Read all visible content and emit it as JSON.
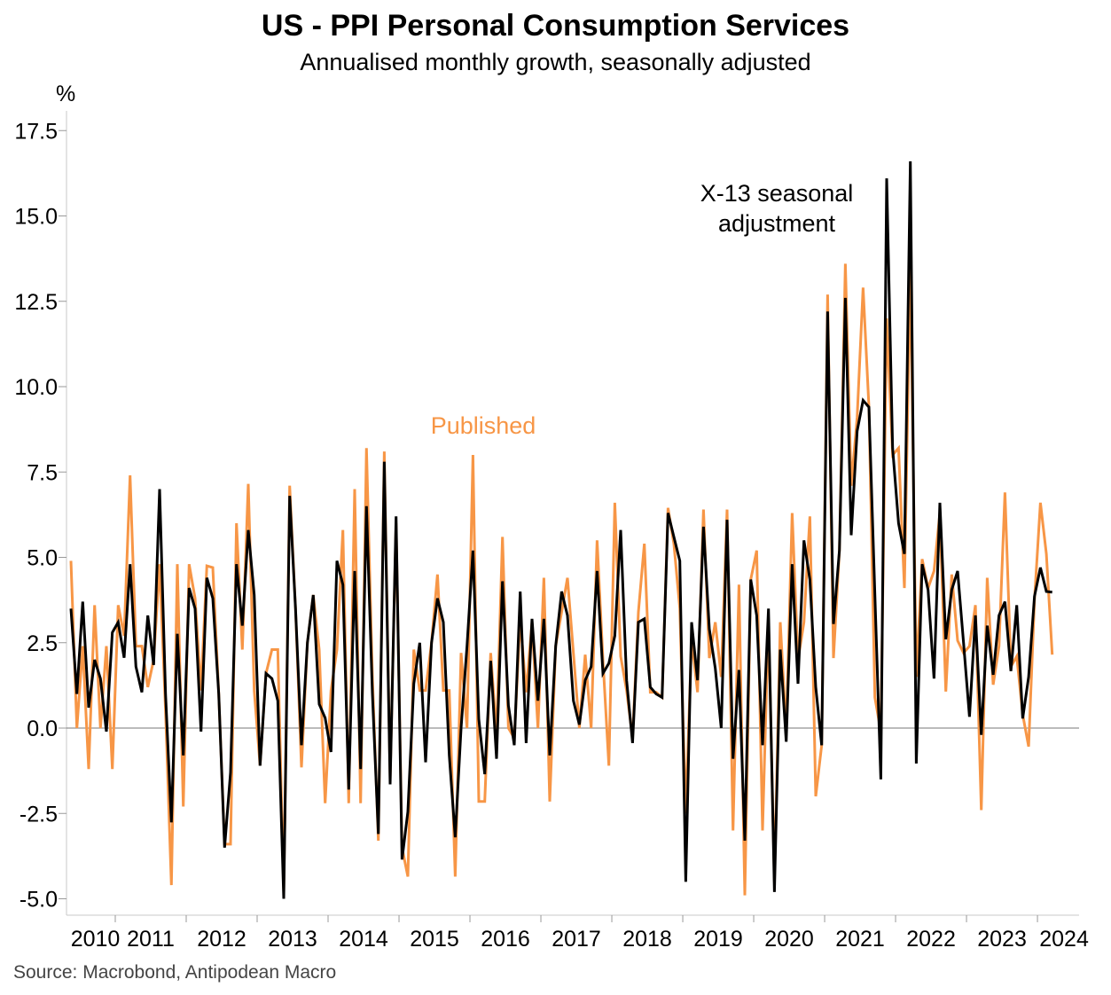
{
  "header": {
    "title": "US - PPI Personal Consumption Services",
    "subtitle": "Annualised monthly growth, seasonally adjusted",
    "unit": "%"
  },
  "footer": {
    "source": "Source: Macrobond, Antipodean Macro"
  },
  "chart_data": {
    "type": "line",
    "title": "US - PPI Personal Consumption Services",
    "subtitle": "Annualised monthly growth, seasonally adjusted",
    "ylabel": "%",
    "xlabel": "",
    "ylim": [
      -5,
      17.5
    ],
    "y_ticks": [
      -5.0,
      -2.5,
      0.0,
      2.5,
      5.0,
      7.5,
      10.0,
      12.5,
      15.0,
      17.5
    ],
    "y_tick_labels": [
      "-5.0",
      "-2.5",
      "0.0",
      "2.5",
      "5.0",
      "7.5",
      "10.0",
      "12.5",
      "15.0",
      "17.5"
    ],
    "x_start": "2010-05",
    "x_end": "2024-03",
    "frequency": "monthly",
    "x_tick_labels": [
      "2010",
      "2011",
      "2012",
      "2013",
      "2014",
      "2015",
      "2016",
      "2017",
      "2018",
      "2019",
      "2020",
      "2021",
      "2022",
      "2023",
      "2024"
    ],
    "grid": false,
    "zero_line": true,
    "series": [
      {
        "name": "Published",
        "color": "#F79646",
        "values": [
          4.9,
          0.0,
          2.4,
          -1.2,
          3.6,
          0.0,
          2.4,
          -1.2,
          3.6,
          2.7,
          7.4,
          2.4,
          2.4,
          1.2,
          2.0,
          4.8,
          0.5,
          -4.6,
          4.8,
          -2.3,
          4.8,
          3.8,
          1.1,
          4.75,
          4.7,
          1.0,
          -3.4,
          -3.4,
          6.0,
          2.3,
          7.15,
          1.1,
          -1.1,
          1.6,
          2.3,
          2.3,
          -4.8,
          7.1,
          3.5,
          -1.15,
          2.5,
          3.9,
          2.3,
          -2.2,
          1.1,
          2.3,
          5.8,
          -2.2,
          7.0,
          -2.2,
          8.2,
          1.5,
          -3.3,
          8.1,
          -1.5,
          6.0,
          -3.5,
          -4.35,
          2.3,
          1.1,
          1.1,
          2.5,
          4.5,
          1.1,
          1.1,
          -4.35,
          2.2,
          0.0,
          8.0,
          -2.15,
          -2.15,
          2.2,
          -0.2,
          5.6,
          0.0,
          -0.3,
          3.2,
          1.05,
          3.1,
          0.0,
          4.4,
          -2.15,
          2.4,
          3.4,
          4.4,
          2.2,
          0.0,
          2.15,
          0.0,
          5.5,
          2.0,
          -1.1,
          6.6,
          2.1,
          1.1,
          -0.3,
          3.4,
          5.4,
          1.05,
          1.05,
          0.9,
          6.45,
          5.4,
          3.5,
          -2.5,
          2.6,
          1.05,
          6.4,
          2.05,
          3.1,
          1.5,
          6.4,
          -3.0,
          4.2,
          -4.9,
          4.35,
          5.2,
          -3.0,
          3.2,
          -4.5,
          3.1,
          -0.1,
          6.3,
          2.0,
          3.1,
          6.2,
          -2.0,
          -0.5,
          12.7,
          2.05,
          5.2,
          13.6,
          7.1,
          9.1,
          12.9,
          9.4,
          0.9,
          -0.1,
          12.0,
          8.0,
          8.2,
          4.1,
          13.5,
          1.5,
          4.95,
          4.1,
          4.6,
          6.3,
          1.07,
          4.5,
          2.56,
          2.2,
          2.4,
          3.6,
          -2.4,
          4.4,
          1.27,
          2.4,
          6.9,
          1.8,
          2.1,
          0.4,
          -0.54,
          3.75,
          6.6,
          5.1,
          2.15
        ]
      },
      {
        "name": "X-13 seasonal adjustment",
        "color": "#000000",
        "values": [
          3.5,
          1.0,
          3.7,
          0.6,
          2.0,
          1.45,
          -0.1,
          2.8,
          3.1,
          2.06,
          4.8,
          1.8,
          1.05,
          3.3,
          1.85,
          7.0,
          1.0,
          -2.76,
          2.76,
          -0.8,
          4.1,
          3.5,
          -0.1,
          4.4,
          3.8,
          1.0,
          -3.5,
          -1.3,
          4.8,
          3.0,
          5.8,
          3.9,
          -1.1,
          1.6,
          1.45,
          0.8,
          -5.0,
          6.8,
          3.5,
          -0.5,
          2.5,
          3.9,
          0.7,
          0.3,
          -0.7,
          4.9,
          4.2,
          -1.8,
          4.6,
          -1.2,
          6.5,
          1.0,
          -3.1,
          7.8,
          -1.65,
          6.2,
          -3.85,
          -2.45,
          1.3,
          2.5,
          -1.0,
          2.5,
          3.8,
          3.1,
          -0.8,
          -3.2,
          0.0,
          2.4,
          5.2,
          0.26,
          -1.35,
          1.97,
          -0.9,
          4.3,
          0.66,
          -0.5,
          4.0,
          -0.44,
          3.2,
          0.8,
          3.2,
          -0.8,
          2.4,
          4.0,
          3.3,
          0.8,
          0.1,
          1.4,
          1.8,
          4.6,
          1.6,
          1.9,
          2.7,
          5.8,
          1.4,
          -0.44,
          3.1,
          3.2,
          1.2,
          1.0,
          0.9,
          6.3,
          5.6,
          4.9,
          -4.5,
          3.1,
          1.4,
          5.9,
          2.9,
          1.75,
          0.0,
          6.1,
          -0.9,
          1.7,
          -3.3,
          4.35,
          3.3,
          -0.5,
          3.5,
          -4.8,
          2.3,
          -0.4,
          4.8,
          1.3,
          5.5,
          4.35,
          1.2,
          -0.5,
          12.2,
          3.05,
          5.2,
          12.6,
          5.65,
          8.7,
          9.6,
          9.4,
          3.9,
          -1.5,
          16.1,
          8.2,
          6.0,
          5.1,
          16.6,
          -1.04,
          4.8,
          4.05,
          1.45,
          6.6,
          2.6,
          4.05,
          4.6,
          2.5,
          0.33,
          3.3,
          -0.2,
          3.0,
          1.56,
          3.3,
          3.7,
          1.67,
          3.6,
          0.28,
          1.5,
          3.86,
          4.7,
          4.0,
          3.98
        ]
      }
    ],
    "annotations": [
      {
        "text": "Published",
        "series": "Published",
        "color": "#F79646"
      },
      {
        "text_lines": [
          "X-13 seasonal",
          "adjustment"
        ],
        "series": "X-13 seasonal adjustment",
        "color": "#000000"
      }
    ]
  }
}
